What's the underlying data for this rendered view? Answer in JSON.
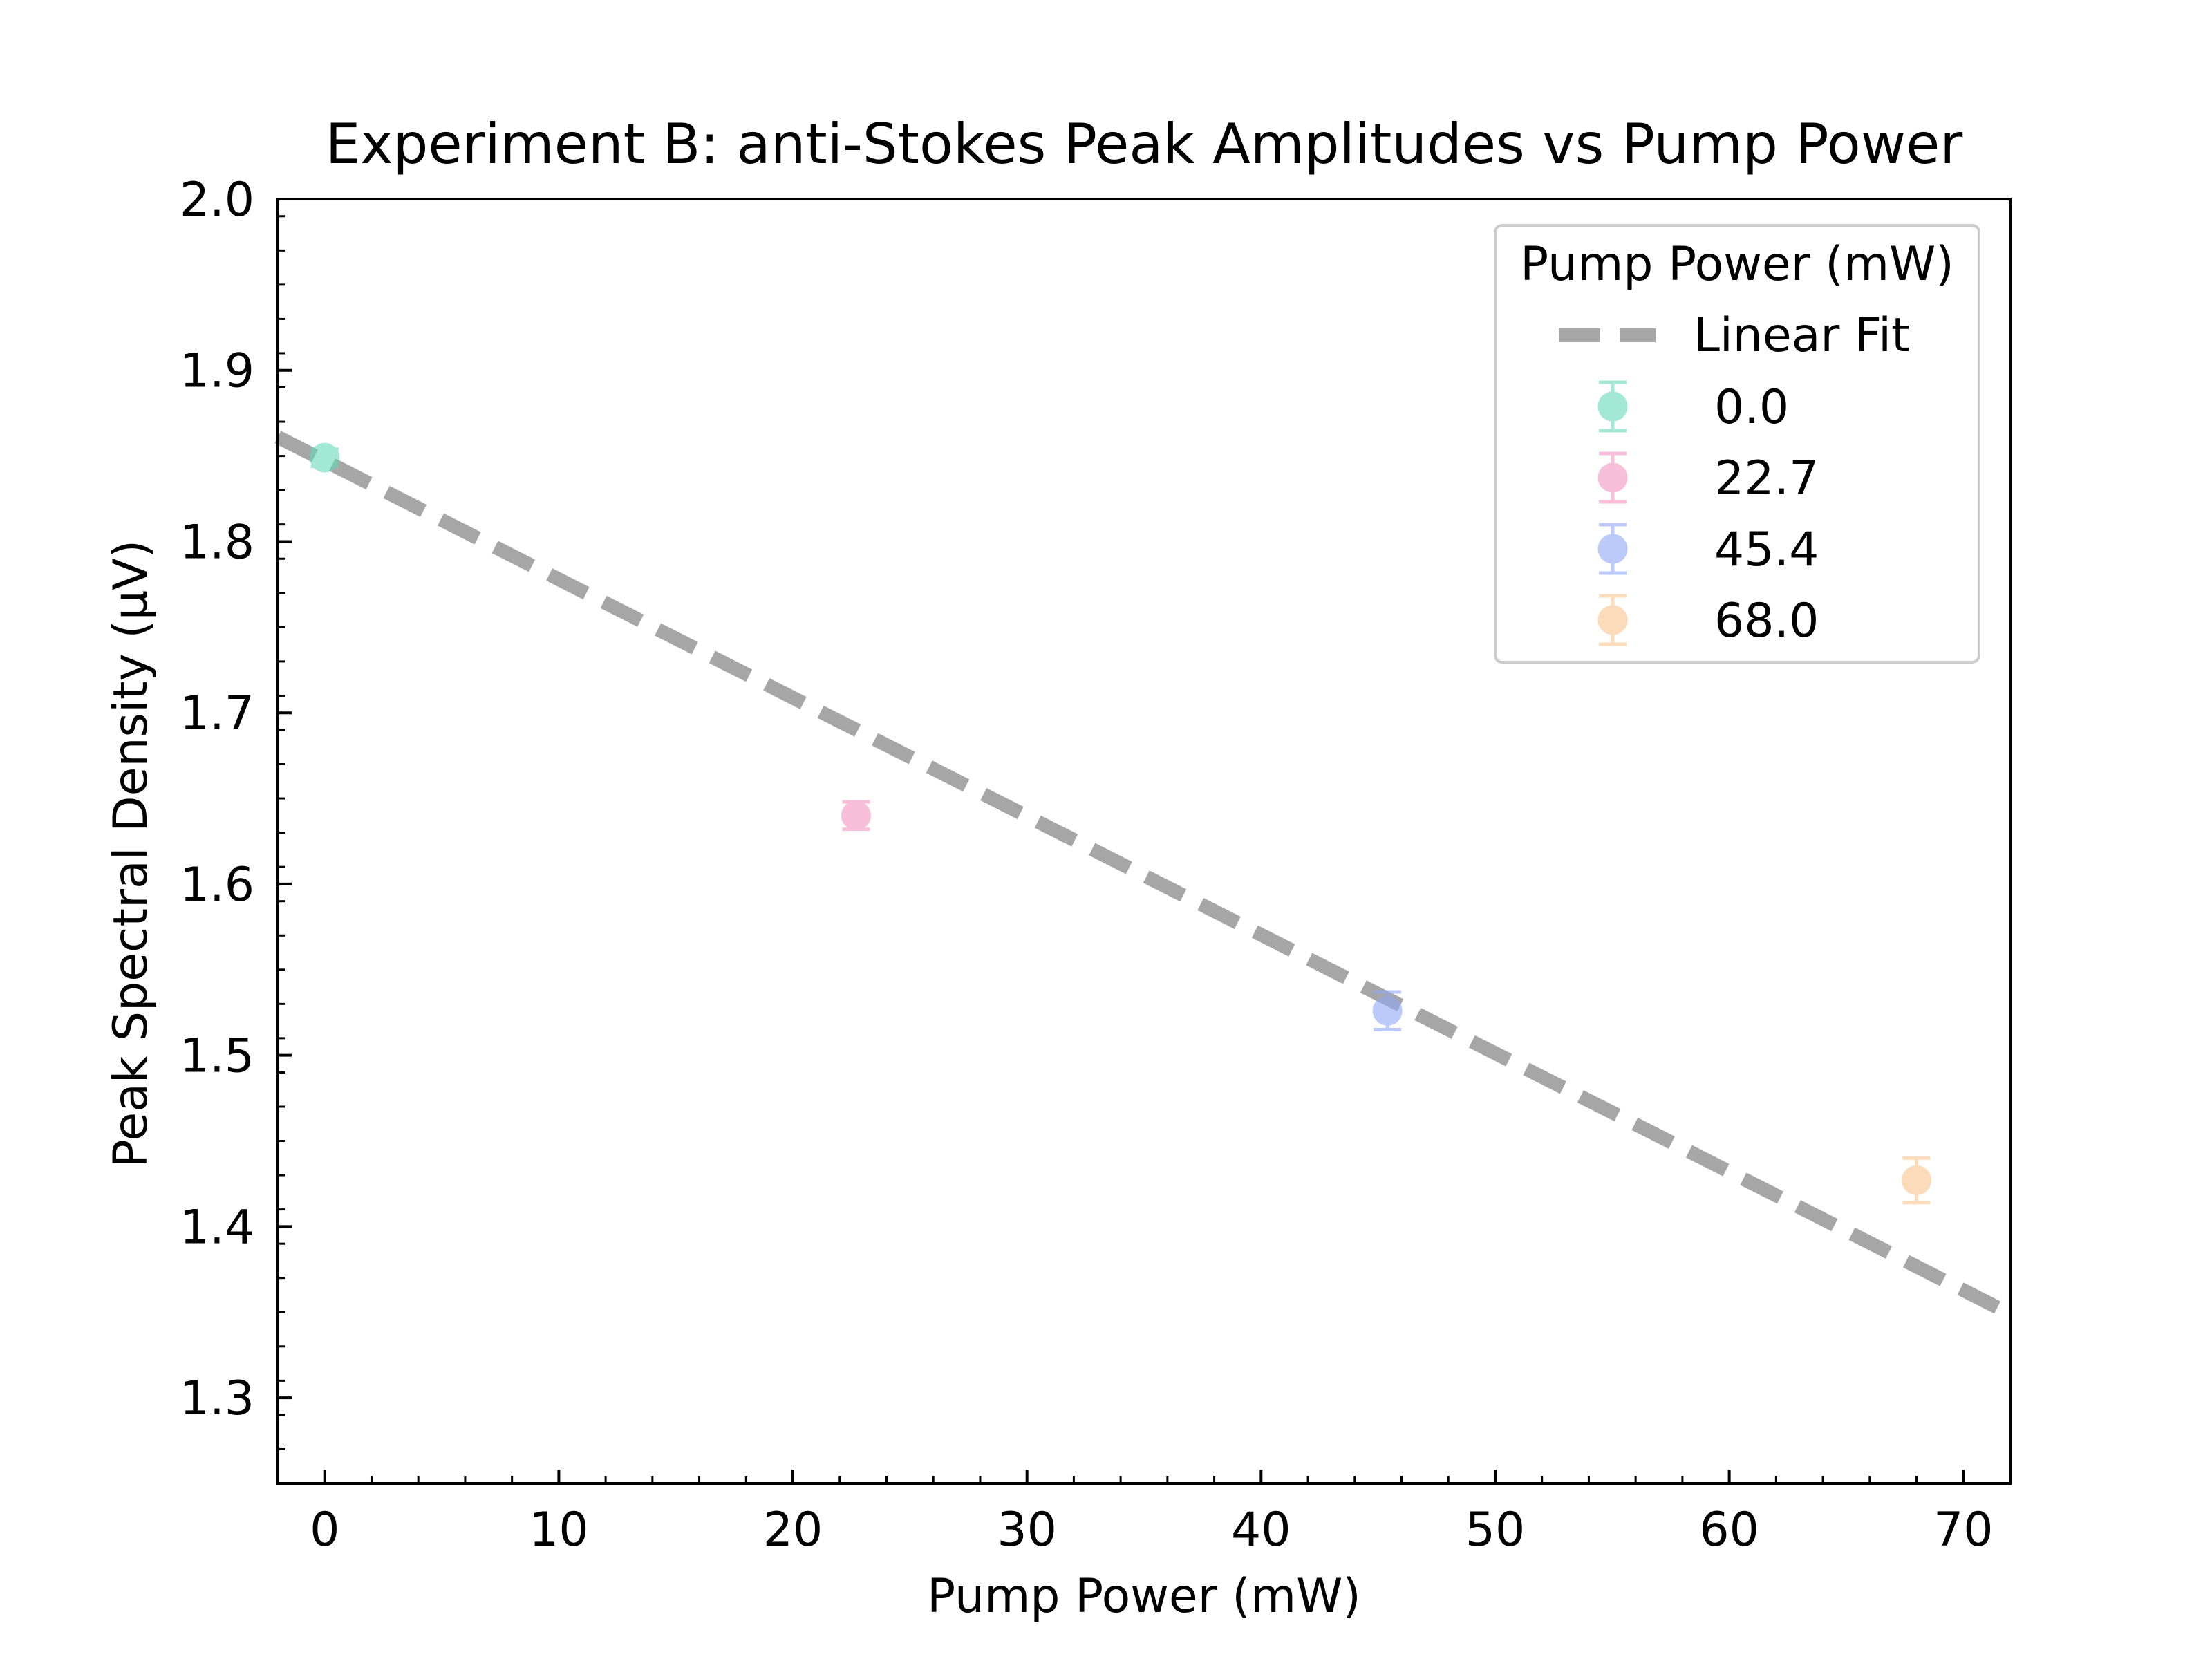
{
  "chart_data": {
    "type": "scatter",
    "title": "Experiment B: anti-Stokes Peak Amplitudes vs Pump Power",
    "xlabel": "Pump Power (mW)",
    "ylabel": "Peak Spectral Density (μV)",
    "xlim": [
      -2,
      72
    ],
    "ylim": [
      1.25,
      2.0
    ],
    "x_ticks": [
      0,
      10,
      20,
      30,
      40,
      50,
      60,
      70
    ],
    "y_ticks": [
      1.3,
      1.4,
      1.5,
      1.6,
      1.7,
      1.8,
      1.9,
      2.0
    ],
    "x_tick_labels": [
      "0",
      "10",
      "20",
      "30",
      "40",
      "50",
      "60",
      "70"
    ],
    "y_tick_labels": [
      "1.3",
      "1.4",
      "1.5",
      "1.6",
      "1.7",
      "1.8",
      "1.9",
      "2.0"
    ],
    "grid": false,
    "legend": {
      "title": "Pump Power (mW)",
      "placement": "top-right",
      "fit_label": "Linear Fit"
    },
    "fit": {
      "name": "Linear Fit",
      "color": "#a6a6a6",
      "x": [
        -2,
        72
      ],
      "y": [
        1.861,
        1.349
      ]
    },
    "series": [
      {
        "name": "0.0",
        "color": "#66d9b8",
        "x": 0.0,
        "y": 1.849,
        "err": 0.005
      },
      {
        "name": "22.7",
        "color": "#f596c4",
        "x": 22.7,
        "y": 1.64,
        "err": 0.008
      },
      {
        "name": "45.4",
        "color": "#8fa8f5",
        "x": 45.4,
        "y": 1.526,
        "err": 0.011
      },
      {
        "name": "68.0",
        "color": "#f9c48c",
        "x": 68.0,
        "y": 1.427,
        "err": 0.013
      }
    ]
  }
}
